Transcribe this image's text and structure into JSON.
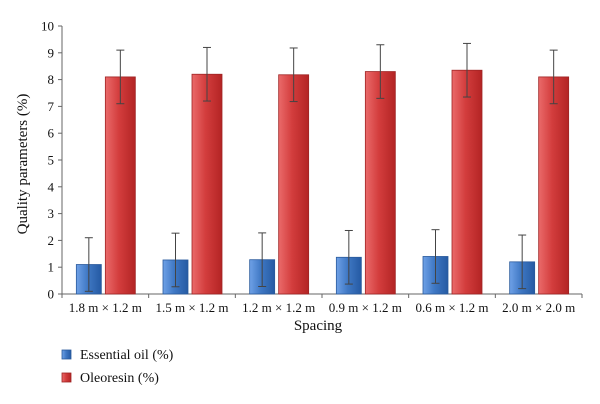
{
  "chart_data": {
    "type": "bar",
    "title": "",
    "xlabel": "Spacing",
    "ylabel": "Quality parameters (%)",
    "ylim": [
      0,
      10
    ],
    "yticks": [
      0,
      1,
      2,
      3,
      4,
      5,
      6,
      7,
      8,
      9,
      10
    ],
    "grid": false,
    "legend_position": "bottom-left",
    "categories": [
      "1.8 m × 1.2 m",
      "1.5 m × 1.2 m",
      "1.2 m × 1.2 m",
      "0.9 m × 1.2 m",
      "0.6 m × 1.2 m",
      "2.0 m × 2.0 m"
    ],
    "series": [
      {
        "name": "Essential oil (%)",
        "color": "#3f78c4",
        "values": [
          1.1,
          1.27,
          1.28,
          1.37,
          1.4,
          1.2
        ],
        "errors": [
          1.0,
          1.0,
          1.0,
          1.0,
          1.0,
          1.0
        ]
      },
      {
        "name": "Oleoresin (%)",
        "color": "#d33d3d",
        "values": [
          8.1,
          8.2,
          8.18,
          8.3,
          8.35,
          8.1
        ],
        "errors": [
          1.0,
          1.0,
          1.0,
          1.0,
          1.0,
          1.0
        ]
      }
    ]
  }
}
